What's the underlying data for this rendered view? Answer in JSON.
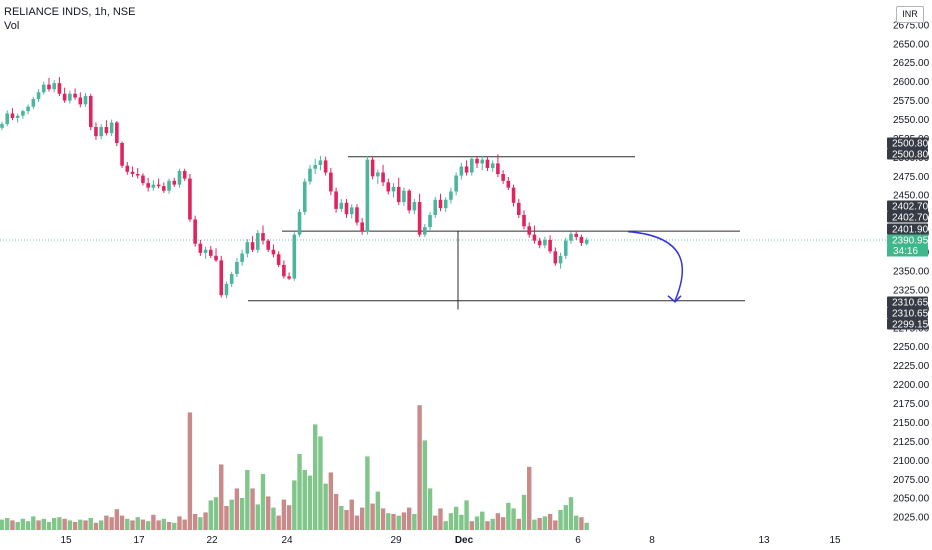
{
  "header": {
    "symbol_title": "RELIANCE INDS, 1h, NSE",
    "volume_label": "Vol",
    "currency": "INR"
  },
  "chart_data": {
    "type": "candlestick",
    "title": "RELIANCE INDS, 1h, NSE",
    "ylabel": "INR",
    "ylim": [
      2012,
      2684
    ],
    "grid": false,
    "y_ticks": [
      2675,
      2650,
      2625,
      2600,
      2575,
      2550,
      2525,
      2500,
      2475,
      2450,
      2425,
      2400,
      2375,
      2350,
      2325,
      2300,
      2275,
      2250,
      2225,
      2200,
      2175,
      2150,
      2125,
      2100,
      2075,
      2050,
      2025
    ],
    "x_ticks": [
      "15",
      "17",
      "22",
      "24",
      "29",
      "Dec",
      "6",
      "8",
      "13",
      "15"
    ],
    "colors": {
      "up": "#26a69a",
      "down": "#ef5350",
      "up_candle": "#4cb5a0",
      "down_candle": "#e0245e",
      "up_volume": "#80c58a",
      "down_volume": "#c98a8a",
      "line": "#2b2b2b",
      "arrow": "#3434e0",
      "last_price": "#3fb68b",
      "tag_dark": "#363a45"
    },
    "candles": [
      [
        2539,
        2547,
        2536,
        2544
      ],
      [
        2544,
        2562,
        2541,
        2558
      ],
      [
        2558,
        2565,
        2549,
        2552
      ],
      [
        2552,
        2558,
        2546,
        2555
      ],
      [
        2555,
        2563,
        2551,
        2561
      ],
      [
        2561,
        2570,
        2557,
        2567
      ],
      [
        2567,
        2580,
        2564,
        2577
      ],
      [
        2577,
        2590,
        2573,
        2586
      ],
      [
        2586,
        2600,
        2583,
        2596
      ],
      [
        2596,
        2605,
        2587,
        2590
      ],
      [
        2590,
        2602,
        2586,
        2598
      ],
      [
        2598,
        2606,
        2581,
        2584
      ],
      [
        2584,
        2592,
        2572,
        2575
      ],
      [
        2575,
        2588,
        2571,
        2584
      ],
      [
        2584,
        2591,
        2576,
        2579
      ],
      [
        2579,
        2586,
        2566,
        2570
      ],
      [
        2570,
        2585,
        2567,
        2581
      ],
      [
        2581,
        2584,
        2536,
        2540
      ],
      [
        2540,
        2546,
        2523,
        2528
      ],
      [
        2528,
        2544,
        2524,
        2540
      ],
      [
        2540,
        2549,
        2529,
        2532
      ],
      [
        2532,
        2550,
        2528,
        2546
      ],
      [
        2546,
        2548,
        2515,
        2519
      ],
      [
        2519,
        2521,
        2486,
        2489
      ],
      [
        2489,
        2494,
        2477,
        2481
      ],
      [
        2481,
        2488,
        2474,
        2478
      ],
      [
        2478,
        2486,
        2472,
        2476
      ],
      [
        2476,
        2479,
        2463,
        2466
      ],
      [
        2466,
        2473,
        2455,
        2460
      ],
      [
        2460,
        2470,
        2456,
        2464
      ],
      [
        2464,
        2472,
        2459,
        2462
      ],
      [
        2462,
        2467,
        2453,
        2456
      ],
      [
        2456,
        2472,
        2452,
        2469
      ],
      [
        2469,
        2473,
        2461,
        2464
      ],
      [
        2464,
        2485,
        2460,
        2482
      ],
      [
        2482,
        2485,
        2469,
        2472
      ],
      [
        2472,
        2478,
        2415,
        2418
      ],
      [
        2418,
        2423,
        2382,
        2386
      ],
      [
        2386,
        2391,
        2370,
        2374
      ],
      [
        2374,
        2382,
        2366,
        2378
      ],
      [
        2378,
        2383,
        2367,
        2370
      ],
      [
        2370,
        2380,
        2362,
        2364
      ],
      [
        2364,
        2370,
        2315,
        2318
      ],
      [
        2318,
        2336,
        2314,
        2333
      ],
      [
        2333,
        2349,
        2329,
        2346
      ],
      [
        2346,
        2367,
        2342,
        2362
      ],
      [
        2362,
        2378,
        2357,
        2373
      ],
      [
        2373,
        2392,
        2368,
        2388
      ],
      [
        2388,
        2396,
        2375,
        2378
      ],
      [
        2378,
        2404,
        2374,
        2400
      ],
      [
        2400,
        2410,
        2385,
        2390
      ],
      [
        2390,
        2392,
        2375,
        2378
      ],
      [
        2378,
        2385,
        2368,
        2372
      ],
      [
        2372,
        2376,
        2355,
        2358
      ],
      [
        2358,
        2364,
        2340,
        2343
      ],
      [
        2343,
        2348,
        2338,
        2340
      ],
      [
        2340,
        2401,
        2337,
        2398
      ],
      [
        2398,
        2432,
        2395,
        2428
      ],
      [
        2428,
        2472,
        2424,
        2468
      ],
      [
        2468,
        2490,
        2464,
        2485
      ],
      [
        2485,
        2498,
        2478,
        2490
      ],
      [
        2490,
        2502,
        2483,
        2496
      ],
      [
        2496,
        2501,
        2476,
        2480
      ],
      [
        2480,
        2486,
        2450,
        2455
      ],
      [
        2455,
        2460,
        2427,
        2432
      ],
      [
        2432,
        2445,
        2428,
        2440
      ],
      [
        2440,
        2445,
        2420,
        2425
      ],
      [
        2425,
        2438,
        2419,
        2434
      ],
      [
        2434,
        2438,
        2410,
        2414
      ],
      [
        2414,
        2420,
        2398,
        2402
      ],
      [
        2402,
        2502,
        2398,
        2497
      ],
      [
        2497,
        2501,
        2471,
        2475
      ],
      [
        2475,
        2484,
        2465,
        2480
      ],
      [
        2480,
        2490,
        2462,
        2467
      ],
      [
        2467,
        2472,
        2451,
        2455
      ],
      [
        2455,
        2466,
        2447,
        2461
      ],
      [
        2461,
        2473,
        2437,
        2441
      ],
      [
        2441,
        2460,
        2436,
        2456
      ],
      [
        2456,
        2458,
        2426,
        2430
      ],
      [
        2430,
        2445,
        2425,
        2441
      ],
      [
        2441,
        2452,
        2395,
        2398
      ],
      [
        2398,
        2412,
        2395,
        2408
      ],
      [
        2408,
        2428,
        2404,
        2424
      ],
      [
        2424,
        2448,
        2420,
        2444
      ],
      [
        2444,
        2452,
        2429,
        2433
      ],
      [
        2433,
        2447,
        2428,
        2444
      ],
      [
        2444,
        2460,
        2439,
        2455
      ],
      [
        2455,
        2480,
        2450,
        2476
      ],
      [
        2476,
        2493,
        2471,
        2488
      ],
      [
        2488,
        2496,
        2476,
        2480
      ],
      [
        2480,
        2502,
        2476,
        2498
      ],
      [
        2498,
        2502,
        2486,
        2492
      ],
      [
        2492,
        2502,
        2483,
        2497
      ],
      [
        2497,
        2501,
        2482,
        2486
      ],
      [
        2486,
        2496,
        2481,
        2492
      ],
      [
        2492,
        2504,
        2474,
        2478
      ],
      [
        2478,
        2483,
        2465,
        2469
      ],
      [
        2469,
        2474,
        2457,
        2460
      ],
      [
        2460,
        2464,
        2435,
        2440
      ],
      [
        2440,
        2445,
        2420,
        2424
      ],
      [
        2424,
        2430,
        2405,
        2409
      ],
      [
        2409,
        2414,
        2394,
        2398
      ],
      [
        2398,
        2410,
        2386,
        2390
      ],
      [
        2390,
        2394,
        2380,
        2384
      ],
      [
        2384,
        2395,
        2380,
        2391
      ],
      [
        2391,
        2397,
        2373,
        2376
      ],
      [
        2376,
        2381,
        2357,
        2360
      ],
      [
        2360,
        2374,
        2353,
        2370
      ],
      [
        2370,
        2394,
        2366,
        2390
      ],
      [
        2390,
        2402,
        2386,
        2399
      ],
      [
        2399,
        2403,
        2391,
        2395
      ],
      [
        2395,
        2398,
        2383,
        2387
      ],
      [
        2386,
        2394,
        2384,
        2391
      ]
    ],
    "volume_bars": [
      [
        13,
        1
      ],
      [
        15,
        1
      ],
      [
        12,
        0
      ],
      [
        10,
        1
      ],
      [
        14,
        1
      ],
      [
        11,
        1
      ],
      [
        17,
        1
      ],
      [
        12,
        0
      ],
      [
        14,
        1
      ],
      [
        10,
        1
      ],
      [
        15,
        1
      ],
      [
        16,
        1
      ],
      [
        14,
        0
      ],
      [
        12,
        1
      ],
      [
        10,
        0
      ],
      [
        13,
        1
      ],
      [
        12,
        0
      ],
      [
        15,
        1
      ],
      [
        9,
        0
      ],
      [
        12,
        1
      ],
      [
        18,
        0
      ],
      [
        16,
        0
      ],
      [
        26,
        0
      ],
      [
        18,
        0
      ],
      [
        14,
        1
      ],
      [
        12,
        0
      ],
      [
        16,
        1
      ],
      [
        13,
        0
      ],
      [
        11,
        1
      ],
      [
        19,
        0
      ],
      [
        12,
        0
      ],
      [
        14,
        1
      ],
      [
        10,
        0
      ],
      [
        9,
        1
      ],
      [
        17,
        0
      ],
      [
        13,
        0
      ],
      [
        147,
        0
      ],
      [
        20,
        0
      ],
      [
        16,
        1
      ],
      [
        22,
        0
      ],
      [
        37,
        1
      ],
      [
        41,
        1
      ],
      [
        82,
        0
      ],
      [
        30,
        0
      ],
      [
        38,
        1
      ],
      [
        52,
        0
      ],
      [
        40,
        1
      ],
      [
        75,
        1
      ],
      [
        52,
        0
      ],
      [
        32,
        1
      ],
      [
        70,
        1
      ],
      [
        42,
        0
      ],
      [
        28,
        1
      ],
      [
        18,
        0
      ],
      [
        38,
        0
      ],
      [
        31,
        0
      ],
      [
        62,
        1
      ],
      [
        95,
        1
      ],
      [
        75,
        1
      ],
      [
        68,
        1
      ],
      [
        132,
        1
      ],
      [
        117,
        1
      ],
      [
        58,
        1
      ],
      [
        72,
        0
      ],
      [
        45,
        0
      ],
      [
        30,
        1
      ],
      [
        25,
        0
      ],
      [
        38,
        0
      ],
      [
        18,
        0
      ],
      [
        28,
        0
      ],
      [
        92,
        1
      ],
      [
        33,
        0
      ],
      [
        48,
        1
      ],
      [
        27,
        0
      ],
      [
        21,
        1
      ],
      [
        20,
        0
      ],
      [
        18,
        1
      ],
      [
        22,
        0
      ],
      [
        28,
        0
      ],
      [
        20,
        1
      ],
      [
        156,
        0
      ],
      [
        112,
        1
      ],
      [
        52,
        1
      ],
      [
        18,
        0
      ],
      [
        27,
        0
      ],
      [
        11,
        1
      ],
      [
        21,
        1
      ],
      [
        29,
        1
      ],
      [
        19,
        1
      ],
      [
        37,
        1
      ],
      [
        11,
        0
      ],
      [
        17,
        1
      ],
      [
        23,
        1
      ],
      [
        11,
        0
      ],
      [
        14,
        1
      ],
      [
        21,
        0
      ],
      [
        16,
        0
      ],
      [
        34,
        1
      ],
      [
        27,
        1
      ],
      [
        14,
        0
      ],
      [
        44,
        1
      ],
      [
        79,
        0
      ],
      [
        13,
        1
      ],
      [
        15,
        0
      ],
      [
        17,
        1
      ],
      [
        20,
        0
      ],
      [
        12,
        0
      ],
      [
        25,
        1
      ],
      [
        31,
        1
      ],
      [
        41,
        1
      ],
      [
        18,
        1
      ],
      [
        16,
        0
      ],
      [
        9,
        1
      ]
    ],
    "levels": [
      2500.8,
      2402.7,
      2401.9,
      2310.65
    ],
    "price_tags": [
      {
        "value": 2500.8,
        "label": "2500.80"
      },
      {
        "value": 2500.8,
        "label": "2500.80"
      },
      {
        "value": 2402.7,
        "label": "2402.70"
      },
      {
        "value": 2402.7,
        "label": "2402.70"
      },
      {
        "value": 2401.9,
        "label": "2401.90"
      },
      {
        "value": 2390.95,
        "label": "2390.95"
      },
      {
        "value": 2310.65,
        "label": "2310.65"
      },
      {
        "value": 2310.65,
        "label": "2310.65"
      },
      {
        "value": 2299.15,
        "label": "2299.15"
      }
    ],
    "last_price": {
      "value": 2390.95,
      "label": "2390.95",
      "countdown": "34:16"
    }
  }
}
